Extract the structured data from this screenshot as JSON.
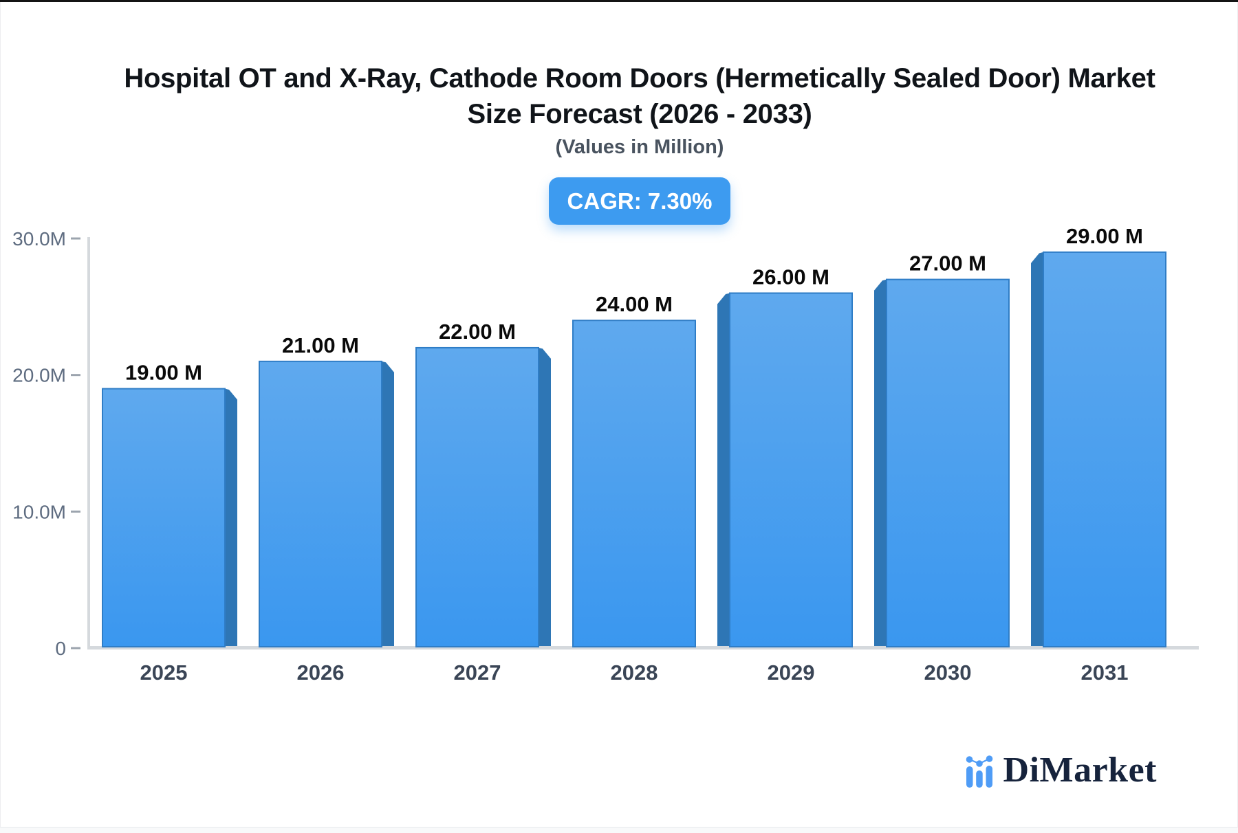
{
  "header": {
    "title": "Hospital OT and X-Ray, Cathode Room Doors (Hermetically Sealed Door) Market Size Forecast (2026 - 2033)",
    "title_lines": [
      "Hospital OT and X-Ray, Cathode Room Doors (Hermetically Sealed Door) Market",
      "Size Forecast (2026 - 2033)"
    ],
    "subtitle": "(Values in Million)",
    "cagr_badge": "CAGR: 7.30%"
  },
  "chart_data": {
    "type": "bar",
    "title": "Hospital OT and X-Ray, Cathode Room Doors (Hermetically Sealed Door) Market Size Forecast (2026 - 2033)",
    "subtitle": "(Values in Million)",
    "cagr_percent": "7.30%",
    "unit": "Million",
    "categories": [
      "2025",
      "2026",
      "2027",
      "2028",
      "2029",
      "2030",
      "2031"
    ],
    "values": [
      19,
      21,
      22,
      24,
      26,
      27,
      29
    ],
    "value_labels": [
      "19.00 M",
      "21.00 M",
      "22.00 M",
      "24.00 M",
      "26.00 M",
      "27.00 M",
      "29.00 M"
    ],
    "ylim": [
      0,
      30
    ],
    "y_ticks": [
      {
        "value": 30,
        "label": "30.0M"
      },
      {
        "value": 20,
        "label": "20.0M"
      },
      {
        "value": 10,
        "label": "10.0M"
      },
      {
        "value": 0,
        "label": "0"
      }
    ],
    "grid": false,
    "legend": false,
    "colors": {
      "bar_face_top": "#5fa9ee",
      "bar_face_bottom": "#3a97ef",
      "bar_stroke": "#2f7dc6",
      "bar_side": "#2e76b5",
      "axis_line": "#d5d9dd",
      "tick_mark": "#9ca4ae",
      "y_label": "#5e6c80",
      "x_label": "#3a4556",
      "value_label": "#0a0a0a",
      "badge_bg": "#3d9bf0"
    }
  },
  "footer": {
    "brand": "DiMarket"
  }
}
